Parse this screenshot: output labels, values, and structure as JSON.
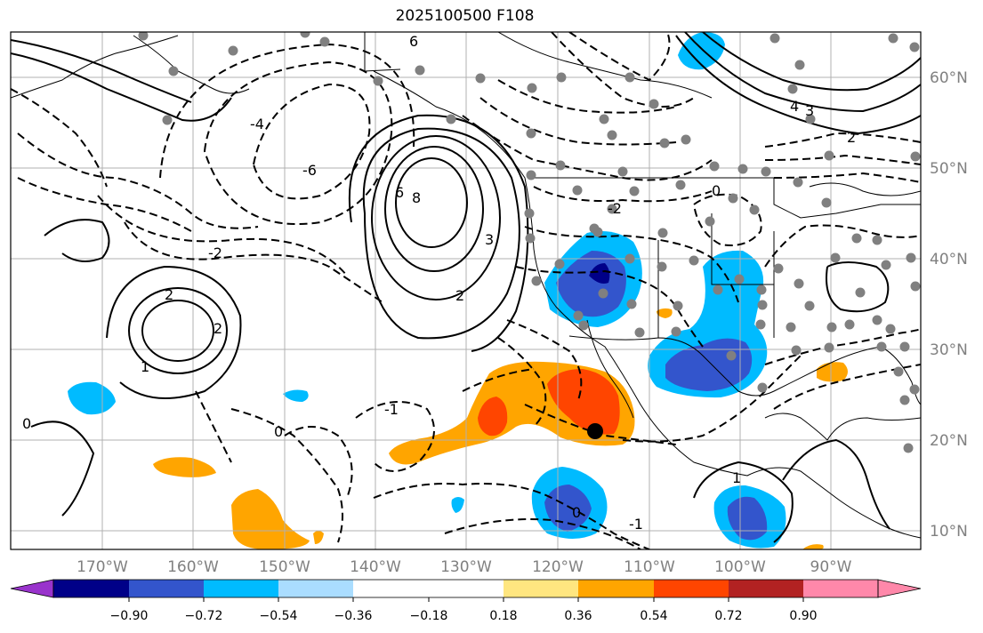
{
  "title": "2025100500 F108",
  "lat_labels": [
    "60°N",
    "50°N",
    "40°N",
    "30°N",
    "20°N",
    "10°N"
  ],
  "lon_labels": [
    "170°W",
    "160°W",
    "150°W",
    "140°W",
    "130°W",
    "120°W",
    "110°W",
    "100°W",
    "90°W"
  ],
  "colorbar": {
    "ticks": [
      "−0.90",
      "−0.72",
      "−0.54",
      "−0.36",
      "−0.18",
      "0.18",
      "0.36",
      "0.54",
      "0.72",
      "0.90"
    ],
    "colors": [
      "#9933cc",
      "#000088",
      "#3355cc",
      "#00bbff",
      "#aaddff",
      "#ffffff",
      "#ffe680",
      "#ffa500",
      "#ff4500",
      "#b22222",
      "#ff88aa"
    ]
  },
  "contour_labels": [
    "6",
    "8",
    "2",
    "3",
    "2",
    "2",
    "1",
    "0",
    "-6",
    "-4",
    "-2",
    "-1",
    "0",
    "2",
    "4",
    "3",
    "6",
    "-2",
    "-1",
    "0",
    "1",
    "0"
  ],
  "colors": {
    "frame": "#000000",
    "grid": "#b0b0b0",
    "land": "#000000",
    "station": "#808080",
    "marker": "#000000"
  }
}
